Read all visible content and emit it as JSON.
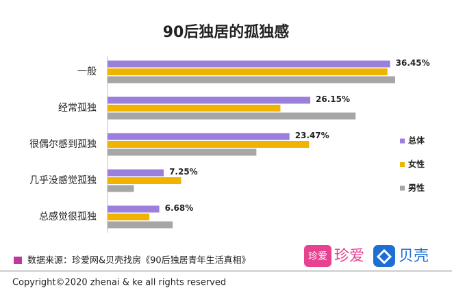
{
  "chart_data": {
    "type": "bar",
    "orientation": "horizontal",
    "title": "90后独居的孤独感",
    "categories": [
      "一般",
      "经常孤独",
      "很偶尔感到孤独",
      "几乎没感觉孤独",
      "总感觉很孤独"
    ],
    "series": [
      {
        "name": "总体",
        "color": "#9b7fdc",
        "values": [
          36.45,
          26.15,
          23.47,
          7.25,
          6.68
        ],
        "value_labels": [
          "36.45%",
          "26.15%",
          "23.47%",
          "7.25%",
          "6.68%"
        ]
      },
      {
        "name": "女性",
        "color": "#f0b400",
        "values": [
          36.1,
          22.3,
          26.0,
          9.5,
          5.4
        ]
      },
      {
        "name": "男性",
        "color": "#a6a6a6",
        "values": [
          37.1,
          32.0,
          19.2,
          3.4,
          8.4
        ]
      }
    ],
    "legend": "right"
  },
  "source": "数据来源：珍爱网&贝壳找房《90后独居青年生活真相》",
  "logos": {
    "zhenai_icon": "珍爱",
    "zhenai": "珍爱",
    "beike": "贝壳"
  },
  "copyright": "Copyright©2020 zhenai & ke all rights reserved"
}
